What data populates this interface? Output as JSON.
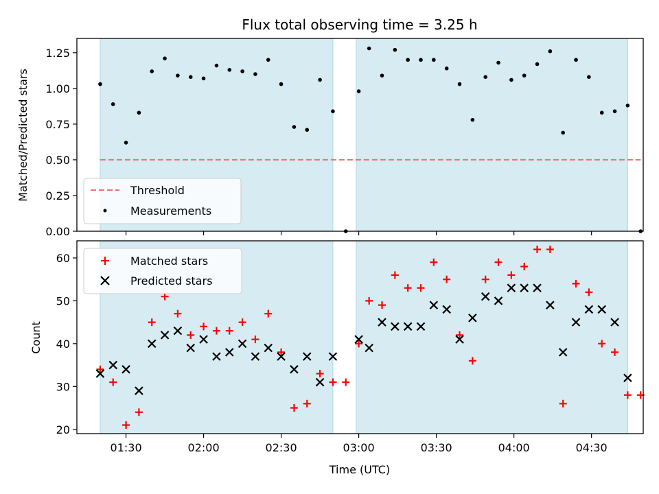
{
  "chart_data": [
    {
      "type": "scatter",
      "title": "Flux total observing time = 3.25 h",
      "xlabel": "",
      "ylabel": "Matched/Predicted stars",
      "xlim": [
        "01:11",
        "04:50"
      ],
      "ylim": [
        0,
        1.35
      ],
      "yticks": [
        0.0,
        0.25,
        0.5,
        0.75,
        1.0,
        1.25
      ],
      "ytick_labels": [
        "0.00",
        "0.25",
        "0.50",
        "0.75",
        "1.00",
        "1.25"
      ],
      "xticks": [
        "01:30",
        "02:00",
        "02:30",
        "03:00",
        "03:30",
        "04:00",
        "04:30"
      ],
      "grid": false,
      "legend_position": "lower-left",
      "shaded_intervals": [
        [
          "01:20",
          "02:50"
        ],
        [
          "02:59",
          "04:44"
        ]
      ],
      "threshold": {
        "name": "Threshold",
        "y": 0.5,
        "x_from": "01:20",
        "x_to": "04:49",
        "color": "#f07070"
      },
      "series": [
        {
          "name": "Measurements",
          "color": "#000000",
          "x": [
            "01:20",
            "01:25",
            "01:30",
            "01:35",
            "01:40",
            "01:45",
            "01:50",
            "01:55",
            "02:00",
            "02:05",
            "02:10",
            "02:15",
            "02:20",
            "02:25",
            "02:30",
            "02:35",
            "02:40",
            "02:45",
            "02:50",
            "02:55",
            "03:00",
            "03:04",
            "03:09",
            "03:14",
            "03:19",
            "03:24",
            "03:29",
            "03:34",
            "03:39",
            "03:44",
            "03:49",
            "03:54",
            "03:59",
            "04:04",
            "04:09",
            "04:14",
            "04:19",
            "04:24",
            "04:29",
            "04:34",
            "04:39",
            "04:44",
            "04:49"
          ],
          "y": [
            1.03,
            0.89,
            0.62,
            0.83,
            1.12,
            1.21,
            1.09,
            1.08,
            1.07,
            1.16,
            1.13,
            1.12,
            1.1,
            1.2,
            1.03,
            0.73,
            0.71,
            1.06,
            0.84,
            0.0,
            0.98,
            1.28,
            1.09,
            1.27,
            1.2,
            1.2,
            1.2,
            1.14,
            1.03,
            0.78,
            1.08,
            1.18,
            1.06,
            1.09,
            1.17,
            1.26,
            0.69,
            1.2,
            1.08,
            0.83,
            0.84,
            0.88,
            0.0
          ]
        }
      ]
    },
    {
      "type": "scatter",
      "title": "",
      "xlabel": "Time (UTC)",
      "ylabel": "Count",
      "xlim": [
        "01:11",
        "04:50"
      ],
      "ylim": [
        19,
        64
      ],
      "yticks": [
        20,
        30,
        40,
        50,
        60
      ],
      "ytick_labels": [
        "20",
        "30",
        "40",
        "50",
        "60"
      ],
      "xticks": [
        "01:30",
        "02:00",
        "02:30",
        "03:00",
        "03:30",
        "04:00",
        "04:30"
      ],
      "xtick_labels": [
        "01:30",
        "02:00",
        "02:30",
        "03:00",
        "03:30",
        "04:00",
        "04:30"
      ],
      "grid": false,
      "legend_position": "upper-left",
      "shaded_intervals": [
        [
          "01:20",
          "02:50"
        ],
        [
          "02:59",
          "04:44"
        ]
      ],
      "series": [
        {
          "name": "Matched stars",
          "marker": "plus",
          "color": "#ff0000",
          "x": [
            "01:20",
            "01:25",
            "01:30",
            "01:35",
            "01:40",
            "01:45",
            "01:50",
            "01:55",
            "02:00",
            "02:05",
            "02:10",
            "02:15",
            "02:20",
            "02:25",
            "02:30",
            "02:35",
            "02:40",
            "02:45",
            "02:50",
            "02:55",
            "03:00",
            "03:04",
            "03:09",
            "03:14",
            "03:19",
            "03:24",
            "03:29",
            "03:34",
            "03:39",
            "03:44",
            "03:49",
            "03:54",
            "03:59",
            "04:04",
            "04:09",
            "04:14",
            "04:19",
            "04:24",
            "04:29",
            "04:34",
            "04:39",
            "04:44",
            "04:49"
          ],
          "y": [
            34,
            31,
            21,
            24,
            45,
            51,
            47,
            42,
            44,
            43,
            43,
            45,
            41,
            47,
            38,
            25,
            26,
            33,
            31,
            31,
            40,
            50,
            49,
            56,
            53,
            53,
            59,
            55,
            42,
            36,
            55,
            59,
            56,
            58,
            62,
            62,
            26,
            54,
            52,
            40,
            38,
            28,
            28
          ]
        },
        {
          "name": "Predicted stars",
          "marker": "x",
          "color": "#000000",
          "x": [
            "01:20",
            "01:25",
            "01:30",
            "01:35",
            "01:40",
            "01:45",
            "01:50",
            "01:55",
            "02:00",
            "02:05",
            "02:10",
            "02:15",
            "02:20",
            "02:25",
            "02:30",
            "02:35",
            "02:40",
            "02:45",
            "02:50",
            "03:00",
            "03:04",
            "03:09",
            "03:14",
            "03:19",
            "03:24",
            "03:29",
            "03:34",
            "03:39",
            "03:44",
            "03:49",
            "03:54",
            "03:59",
            "04:04",
            "04:09",
            "04:14",
            "04:19",
            "04:24",
            "04:29",
            "04:34",
            "04:39",
            "04:44"
          ],
          "y": [
            33,
            35,
            34,
            29,
            40,
            42,
            43,
            39,
            41,
            37,
            38,
            40,
            37,
            39,
            37,
            34,
            37,
            31,
            37,
            41,
            39,
            45,
            44,
            44,
            44,
            49,
            48,
            41,
            46,
            51,
            50,
            53,
            53,
            53,
            49,
            38,
            45,
            48,
            48,
            45,
            32
          ]
        }
      ]
    }
  ]
}
